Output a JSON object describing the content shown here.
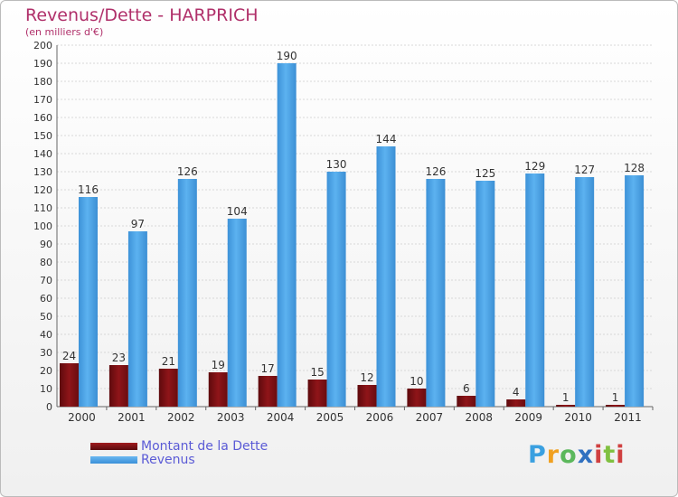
{
  "header": {
    "title": "Revenus/Dette - HARPRICH",
    "subtitle": "(en milliers d'€)"
  },
  "chart_data": {
    "type": "bar",
    "title": "Revenus/Dette - HARPRICH",
    "ylabel": "(en milliers d'€)",
    "xlabel": "",
    "ylim": [
      0,
      200
    ],
    "yticks": [
      0,
      10,
      20,
      30,
      40,
      50,
      60,
      70,
      80,
      90,
      100,
      110,
      120,
      130,
      140,
      150,
      160,
      170,
      180,
      190,
      200
    ],
    "categories": [
      "2000",
      "2001",
      "2002",
      "2003",
      "2004",
      "2005",
      "2006",
      "2007",
      "2008",
      "2009",
      "2010",
      "2011"
    ],
    "series": [
      {
        "name": "Montant de la Dette",
        "color": "#7a0f12",
        "values": [
          24,
          23,
          21,
          19,
          17,
          15,
          12,
          10,
          6,
          4,
          1,
          1
        ]
      },
      {
        "name": "Revenus",
        "color": "#4ea6e8",
        "values": [
          116,
          97,
          126,
          104,
          190,
          130,
          144,
          126,
          125,
          129,
          127,
          128
        ]
      }
    ],
    "legend": [
      "Montant de la Dette",
      "Revenus"
    ],
    "legend_position": "bottom-left"
  },
  "branding": {
    "logo_text": "Proxiti"
  }
}
